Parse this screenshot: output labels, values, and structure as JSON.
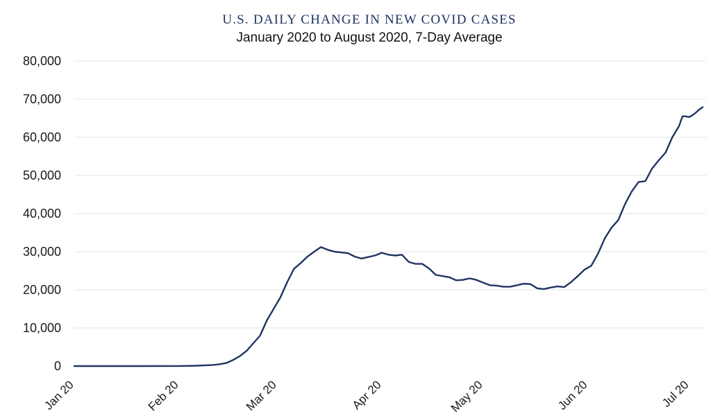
{
  "chart_data": {
    "type": "line",
    "title": "U.S. DAILY CHANGE IN NEW COVID CASES",
    "subtitle": "January 2020 to August 2020, 7-Day Average",
    "xlabel": "",
    "ylabel": "",
    "ylim": [
      0,
      80000
    ],
    "yticks": [
      0,
      10000,
      20000,
      30000,
      40000,
      50000,
      60000,
      70000,
      80000
    ],
    "ytick_labels": [
      "0",
      "10,000",
      "20,000",
      "30,000",
      "40,000",
      "50,000",
      "60,000",
      "70,000",
      "80,000"
    ],
    "xticks": [
      "2020-01-20",
      "2020-02-20",
      "2020-03-20",
      "2020-04-20",
      "2020-05-20",
      "2020-06-20",
      "2020-07-20"
    ],
    "xtick_labels": [
      "Jan 20",
      "Feb 20",
      "Mar 20",
      "Apr 20",
      "May 20",
      "Jun 20",
      "Jul 20"
    ],
    "xlim": [
      "2020-01-20",
      "2020-07-25"
    ],
    "grid": true,
    "line_color": "#1e3461",
    "series": [
      {
        "points": [
          [
            "2020-01-20",
            0
          ],
          [
            "2020-02-10",
            0
          ],
          [
            "2020-02-20",
            20
          ],
          [
            "2020-02-25",
            100
          ],
          [
            "2020-03-01",
            300
          ],
          [
            "2020-03-03",
            500
          ],
          [
            "2020-03-05",
            800
          ],
          [
            "2020-03-07",
            1600
          ],
          [
            "2020-03-09",
            2600
          ],
          [
            "2020-03-11",
            4000
          ],
          [
            "2020-03-13",
            6000
          ],
          [
            "2020-03-15",
            8000
          ],
          [
            "2020-03-17",
            12000
          ],
          [
            "2020-03-19",
            15000
          ],
          [
            "2020-03-21",
            18000
          ],
          [
            "2020-03-23",
            22000
          ],
          [
            "2020-03-25",
            25500
          ],
          [
            "2020-03-27",
            27000
          ],
          [
            "2020-03-29",
            28700
          ],
          [
            "2020-03-31",
            30000
          ],
          [
            "2020-04-02",
            31200
          ],
          [
            "2020-04-04",
            30500
          ],
          [
            "2020-04-06",
            30000
          ],
          [
            "2020-04-08",
            29800
          ],
          [
            "2020-04-10",
            29600
          ],
          [
            "2020-04-12",
            28700
          ],
          [
            "2020-04-14",
            28200
          ],
          [
            "2020-04-16",
            28600
          ],
          [
            "2020-04-18",
            29000
          ],
          [
            "2020-04-20",
            29700
          ],
          [
            "2020-04-22",
            29200
          ],
          [
            "2020-04-24",
            29000
          ],
          [
            "2020-04-26",
            29200
          ],
          [
            "2020-04-28",
            27300
          ],
          [
            "2020-04-30",
            26800
          ],
          [
            "2020-05-02",
            26800
          ],
          [
            "2020-05-04",
            25600
          ],
          [
            "2020-05-06",
            23900
          ],
          [
            "2020-05-08",
            23600
          ],
          [
            "2020-05-10",
            23300
          ],
          [
            "2020-05-12",
            22500
          ],
          [
            "2020-05-14",
            22600
          ],
          [
            "2020-05-16",
            23000
          ],
          [
            "2020-05-18",
            22600
          ],
          [
            "2020-05-20",
            21900
          ],
          [
            "2020-05-22",
            21200
          ],
          [
            "2020-05-24",
            21100
          ],
          [
            "2020-05-26",
            20800
          ],
          [
            "2020-05-28",
            20800
          ],
          [
            "2020-05-30",
            21200
          ],
          [
            "2020-06-01",
            21600
          ],
          [
            "2020-06-03",
            21500
          ],
          [
            "2020-06-05",
            20400
          ],
          [
            "2020-06-07",
            20200
          ],
          [
            "2020-06-09",
            20600
          ],
          [
            "2020-06-11",
            20900
          ],
          [
            "2020-06-13",
            20700
          ],
          [
            "2020-06-15",
            22000
          ],
          [
            "2020-06-17",
            23600
          ],
          [
            "2020-06-19",
            25300
          ],
          [
            "2020-06-21",
            26300
          ],
          [
            "2020-06-23",
            29500
          ],
          [
            "2020-06-25",
            33500
          ],
          [
            "2020-06-27",
            36300
          ],
          [
            "2020-06-29",
            38300
          ],
          [
            "2020-07-01",
            42500
          ],
          [
            "2020-07-03",
            45800
          ],
          [
            "2020-07-05",
            48300
          ],
          [
            "2020-07-07",
            48500
          ],
          [
            "2020-07-09",
            51800
          ],
          [
            "2020-07-11",
            54000
          ],
          [
            "2020-07-13",
            56000
          ],
          [
            "2020-07-15",
            60000
          ],
          [
            "2020-07-17",
            63000
          ],
          [
            "2020-07-18",
            65500
          ],
          [
            "2020-07-19",
            65500
          ],
          [
            "2020-07-20",
            65300
          ],
          [
            "2020-07-21",
            65800
          ],
          [
            "2020-07-22",
            66500
          ],
          [
            "2020-07-23",
            67300
          ],
          [
            "2020-07-24",
            67900
          ]
        ]
      }
    ]
  }
}
